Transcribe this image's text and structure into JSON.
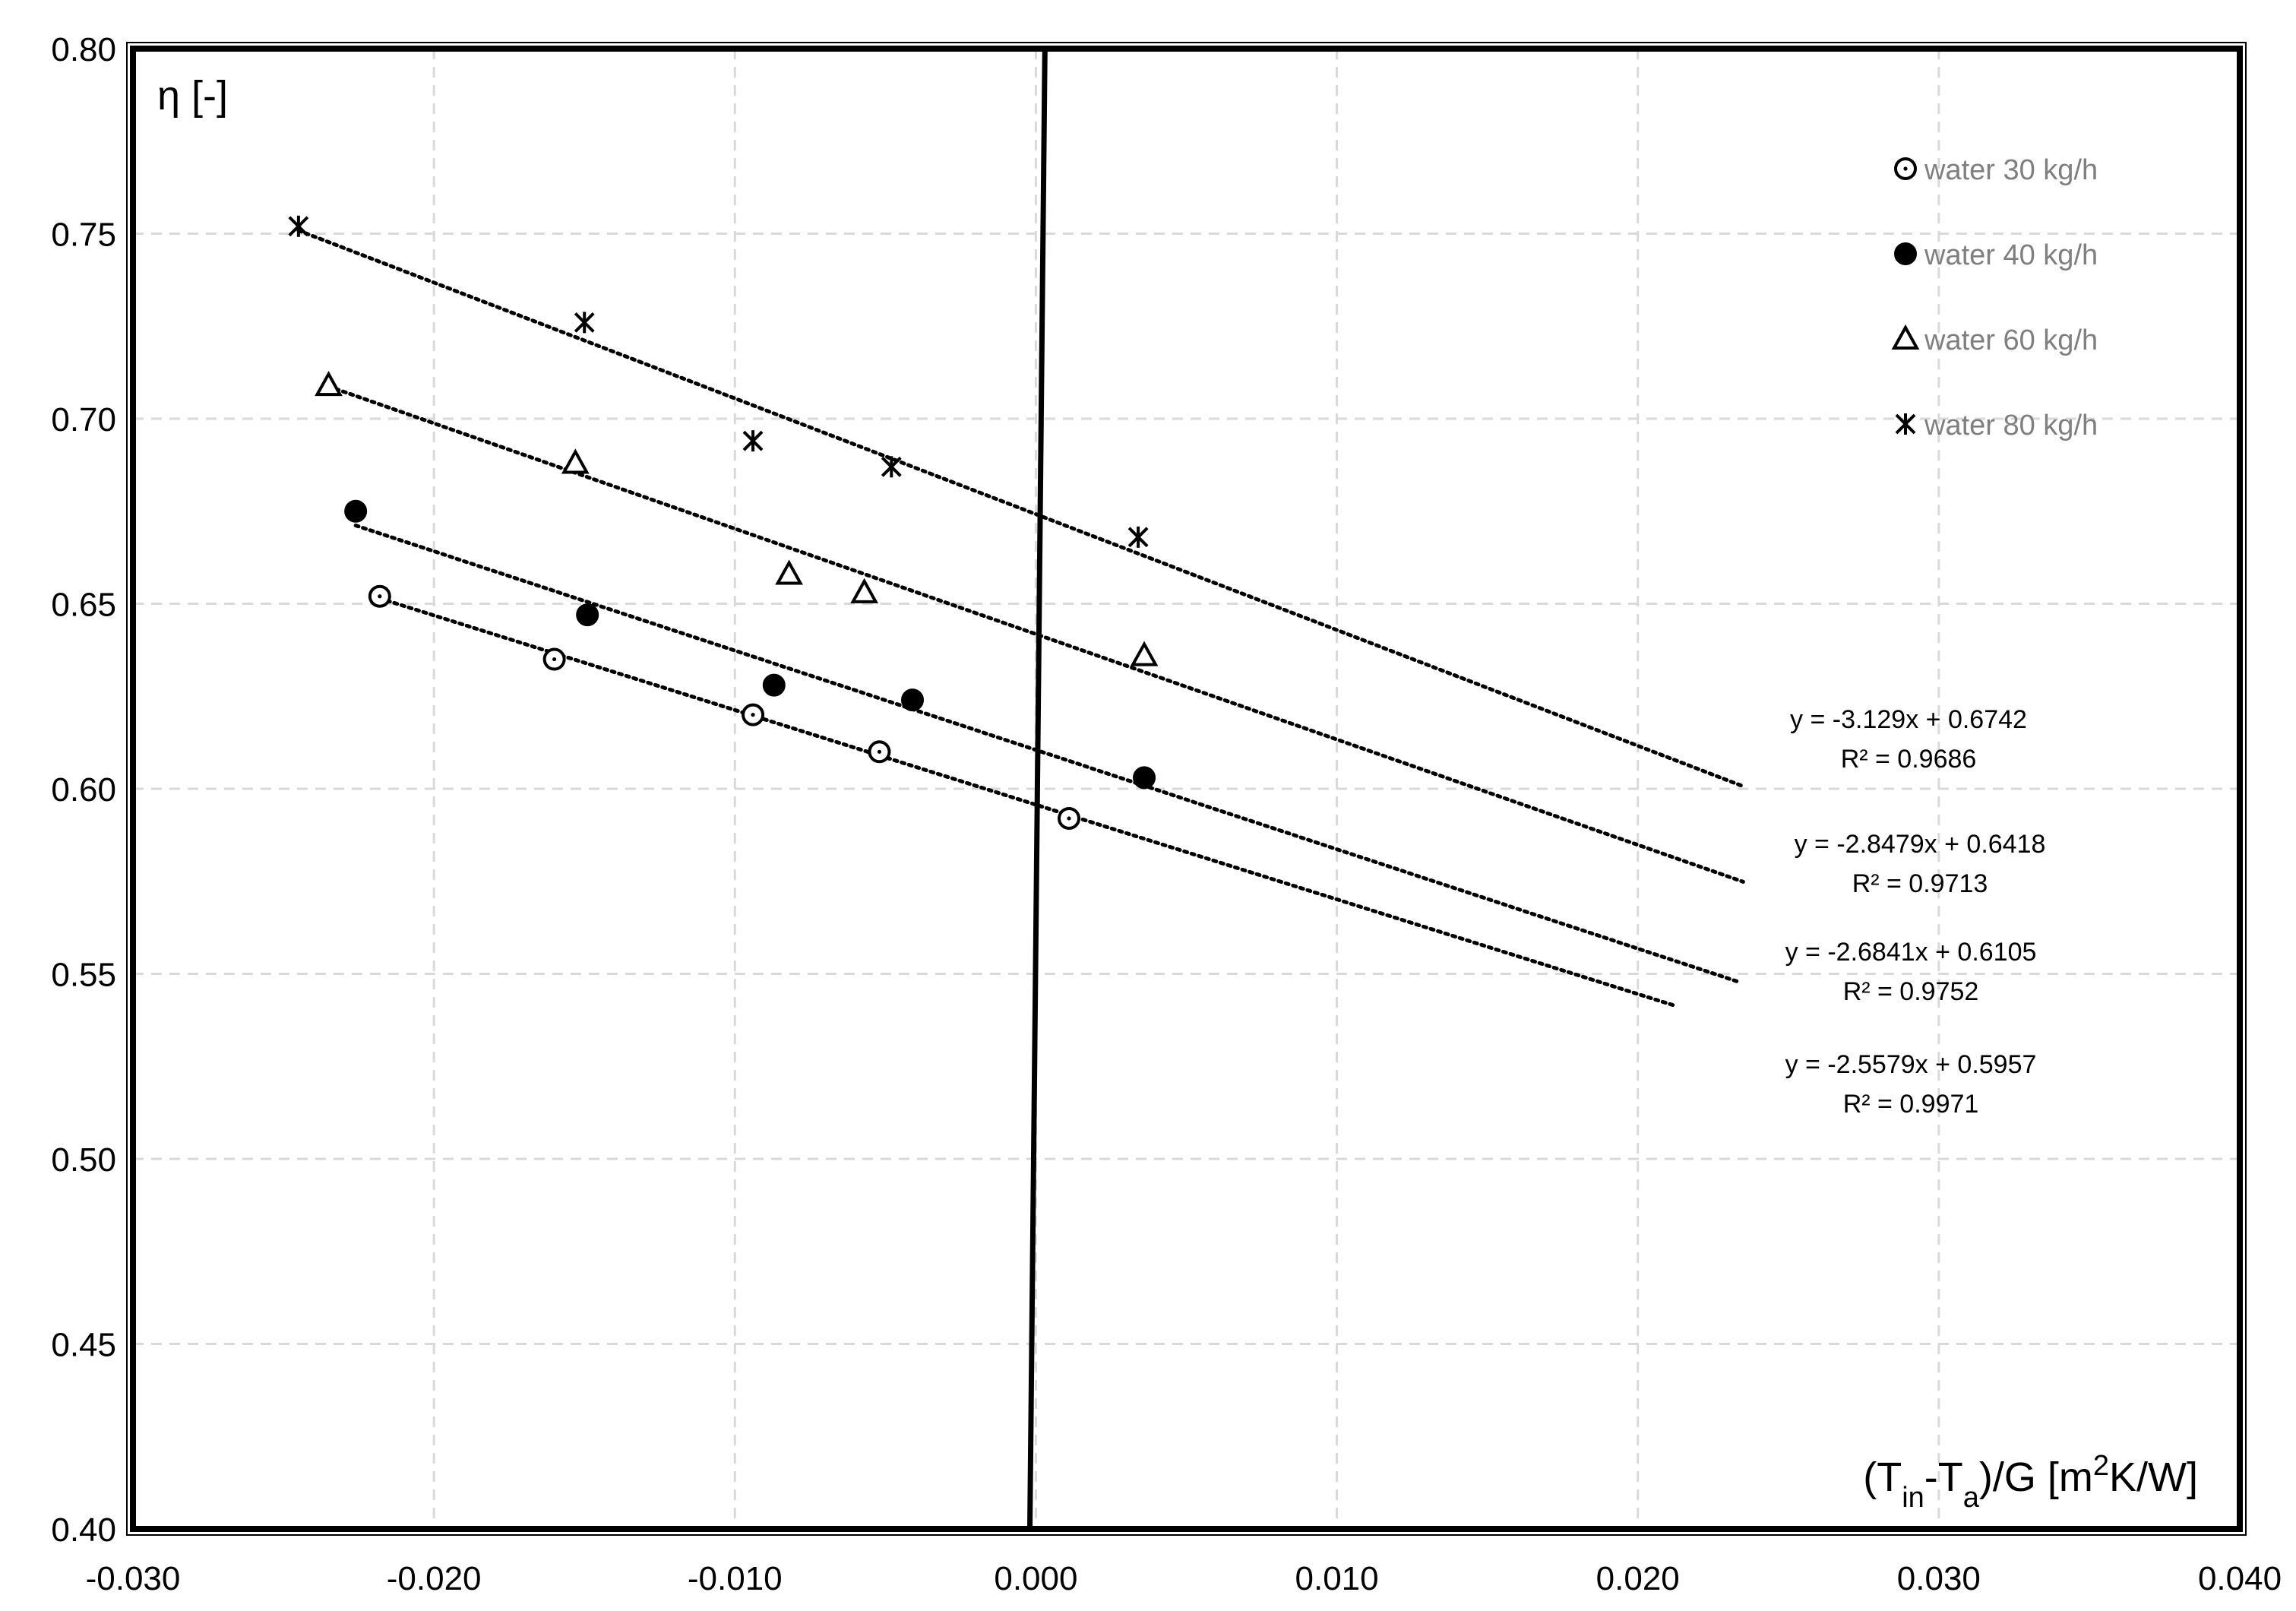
{
  "chart_data": {
    "type": "scatter",
    "xlabel": "(Tin-Ta)/G [m2K/W]",
    "xlabel_parts": {
      "a": "(T",
      "b": "in",
      "c": "-T",
      "d": "a",
      "e": ")/G [m",
      "f": "2",
      "g": "K/W]"
    },
    "ylabel": "η [-]",
    "xlim": [
      -0.03,
      0.04
    ],
    "ylim": [
      0.4,
      0.8
    ],
    "x_ticks": [
      -0.03,
      -0.02,
      -0.01,
      0.0,
      0.01,
      0.02,
      0.03,
      0.04
    ],
    "x_tick_labels": [
      "-0.030",
      "-0.020",
      "-0.010",
      "0.000",
      "0.010",
      "0.020",
      "0.030",
      "0.040"
    ],
    "y_ticks": [
      0.4,
      0.45,
      0.5,
      0.55,
      0.6,
      0.65,
      0.7,
      0.75,
      0.8
    ],
    "y_tick_labels": [
      "0.40",
      "0.45",
      "0.50",
      "0.55",
      "0.60",
      "0.65",
      "0.70",
      "0.75",
      "0.80"
    ],
    "grid": true,
    "legend_position": "top-right",
    "series": [
      {
        "name": "water 30 kg/h",
        "marker": "circle-open-dot",
        "x": [
          -0.0218,
          -0.016,
          -0.0094,
          -0.0052,
          0.0011
        ],
        "y": [
          0.652,
          0.635,
          0.62,
          0.61,
          0.592
        ],
        "trendline": {
          "x": [
            -0.0218,
            0.0212
          ],
          "slope": -2.5579,
          "intercept": 0.5957
        },
        "equation": "y = -2.5579x + 0.5957",
        "r2": "R² = 0.9971"
      },
      {
        "name": "water 40 kg/h",
        "marker": "circle-filled",
        "x": [
          -0.0226,
          -0.0149,
          -0.0087,
          -0.0041,
          0.0036
        ],
        "y": [
          0.675,
          0.647,
          0.628,
          0.624,
          0.603
        ],
        "trendline": {
          "x": [
            -0.0226,
            0.0234
          ],
          "slope": -2.6841,
          "intercept": 0.6105
        },
        "equation": "y = -2.6841x + 0.6105",
        "r2": "R² = 0.9752"
      },
      {
        "name": "water 60 kg/h",
        "marker": "triangle-open",
        "x": [
          -0.0235,
          -0.0153,
          -0.0082,
          -0.0057,
          0.0036
        ],
        "y": [
          0.709,
          0.688,
          0.658,
          0.653,
          0.636
        ],
        "trendline": {
          "x": [
            -0.0235,
            0.0235
          ],
          "slope": -2.8479,
          "intercept": 0.6418
        },
        "equation": "y = -2.8479x + 0.6418",
        "r2": "R² = 0.9713"
      },
      {
        "name": "water 80 kg/h",
        "marker": "asterisk",
        "x": [
          -0.0245,
          -0.015,
          -0.0094,
          -0.0048,
          0.0034
        ],
        "y": [
          0.752,
          0.726,
          0.694,
          0.687,
          0.668
        ],
        "trendline": {
          "x": [
            -0.0245,
            0.0235
          ],
          "slope": -3.129,
          "intercept": 0.6742
        },
        "equation": "y = -3.129x + 0.6742",
        "r2": "R² = 0.9686"
      }
    ],
    "equation_order": [
      "water 80 kg/h",
      "water 60 kg/h",
      "water 40 kg/h",
      "water 30 kg/h"
    ]
  }
}
